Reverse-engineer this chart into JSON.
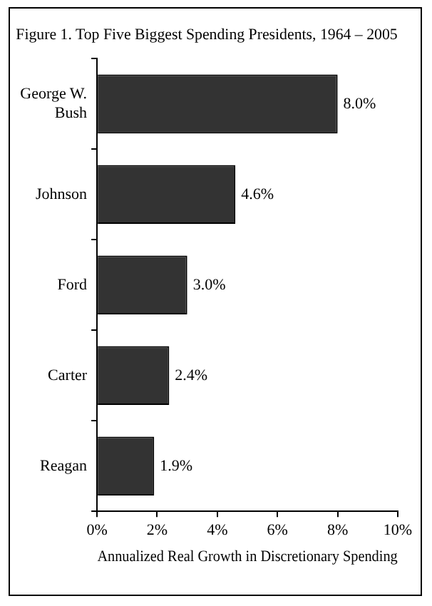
{
  "chart_data": {
    "type": "bar",
    "orientation": "horizontal",
    "title": "Figure 1. Top Five Biggest Spending Presidents, 1964 – 2005",
    "xlabel": "Annualized Real Growth in Discretionary Spending",
    "categories": [
      "George W. Bush",
      "Johnson",
      "Ford",
      "Carter",
      "Reagan"
    ],
    "values": [
      8.0,
      4.6,
      3.0,
      2.4,
      1.9
    ],
    "color": "#333333",
    "value_labels": [
      "8.0%",
      "4.6%",
      "3.0%",
      "2.4%",
      "1.9%"
    ],
    "xlim": [
      0,
      10
    ],
    "xticks": [
      {
        "value": 0,
        "label": "0%"
      },
      {
        "value": 2,
        "label": "2%"
      },
      {
        "value": 4,
        "label": "4%"
      },
      {
        "value": 6,
        "label": "6%"
      },
      {
        "value": 8,
        "label": "8%"
      },
      {
        "value": 10,
        "label": "10%"
      }
    ],
    "grid": false,
    "legend": false
  }
}
